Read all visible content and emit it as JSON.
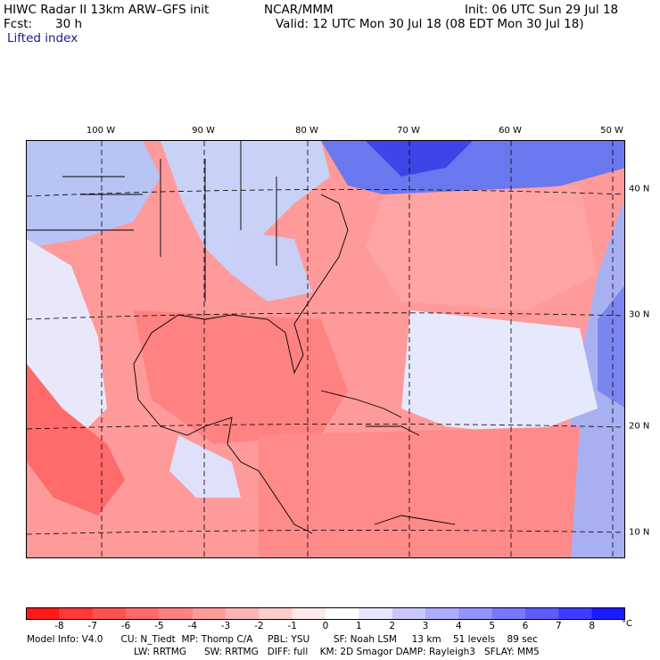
{
  "header": {
    "title_left": "HIWC Radar II 13km ARW–GFS init",
    "org": "NCAR/MMM",
    "init": "Init: 06 UTC Sun 29 Jul 18",
    "fcst_label": "Fcst:",
    "fcst_value": "30 h",
    "valid": "Valid: 12 UTC Mon 30 Jul 18 (08 EDT Mon 30 Jul 18)",
    "field_name": "Lifted index"
  },
  "map": {
    "longitude_labels": [
      "100 W",
      "90 W",
      "80 W",
      "70 W",
      "60 W",
      "50 W"
    ],
    "latitude_labels": [
      "40 N",
      "30 N",
      "20 N",
      "10 N"
    ],
    "grid_style": "dashed"
  },
  "colorbar": {
    "tick_labels": [
      "-8",
      "-7",
      "-6",
      "-5",
      "-4",
      "-3",
      "-2",
      "-1",
      "0",
      "1",
      "2",
      "3",
      "4",
      "5",
      "6",
      "7",
      "8"
    ],
    "unit": "°C",
    "colors": [
      "#ff1a1a",
      "#ff3838",
      "#ff5252",
      "#ff6a6a",
      "#ff8282",
      "#ff9a9a",
      "#ffb4b4",
      "#ffcccc",
      "#ffe8e8",
      "#ffffff",
      "#e6e6ff",
      "#c8c8ff",
      "#aeaeff",
      "#9494ff",
      "#7878ff",
      "#5c5cff",
      "#3c3cff",
      "#1a1aff"
    ]
  },
  "footer": {
    "line1": "Model Info: V4.0      CU: N_Tiedt  MP: Thomp C/A     PBL: YSU        SF: Noah LSM     13 km    51 levels    89 sec",
    "line2": "LW: RRTMG      SW: RRTMG   DIFF: full    KM: 2D Smagor DAMP: Rayleigh3   SFLAY: MM5"
  }
}
